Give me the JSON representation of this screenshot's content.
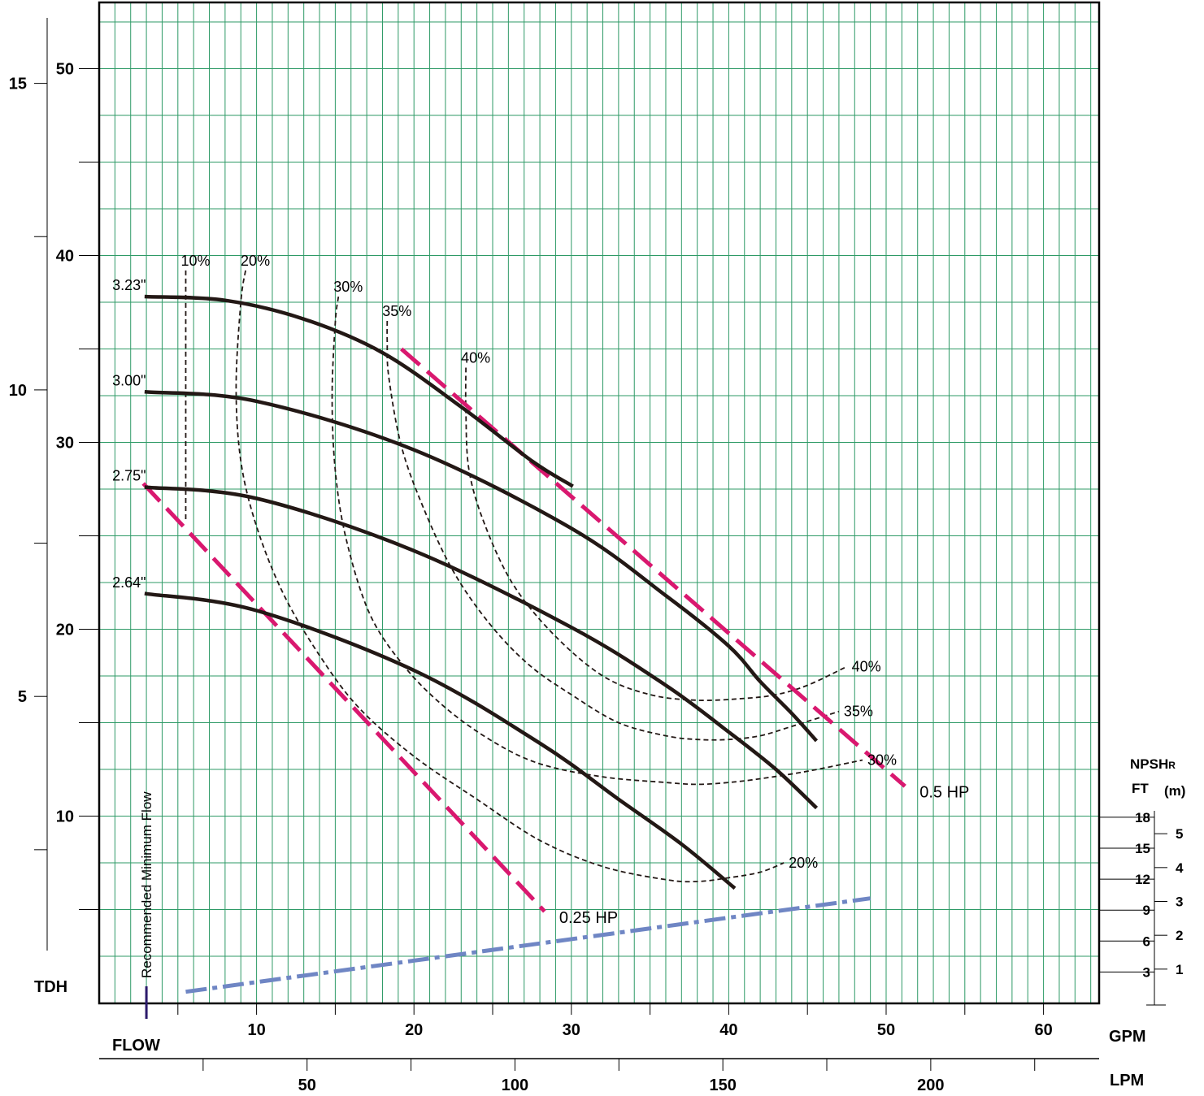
{
  "chart_data": {
    "type": "line",
    "title": "",
    "colors": {
      "grid": "#2e9a66",
      "curve": "#231815",
      "efficiency": "#231815",
      "horsepower": "#d9186f",
      "npshr": "#6f86c4",
      "min_flow": "#2b1a6b"
    },
    "axes": {
      "x_gpm": {
        "label": "GPM",
        "range": [
          0,
          63
        ],
        "ticks": [
          10,
          20,
          30,
          40,
          50,
          60
        ],
        "minor_step": 5
      },
      "x_lpm": {
        "label": "LPM",
        "ticks": [
          50,
          100,
          150,
          200
        ],
        "minor_step": 25
      },
      "y_ft": {
        "range": [
          0,
          55
        ],
        "ticks": [
          10,
          20,
          30,
          40,
          50
        ],
        "minor_step": 5
      },
      "y_m": {
        "ticks": [
          5,
          10,
          15
        ],
        "minor_step": 2.5
      },
      "tdh_label": "TDH",
      "flow_label": "FLOW",
      "npsh": {
        "title": "NPSH",
        "title_sub": "R",
        "ft_label": "FT",
        "m_label": "(m)",
        "ft_ticks": [
          3,
          6,
          9,
          12,
          15,
          18
        ],
        "m_ticks": [
          1,
          2,
          3,
          4,
          5
        ]
      }
    },
    "impeller_curves": [
      {
        "name": "3.23\"",
        "x": [
          3,
          8,
          13,
          18,
          23,
          27.5,
          30
        ],
        "y": [
          37.8,
          37.6,
          36.6,
          34.8,
          31.9,
          29.0,
          27.7
        ]
      },
      {
        "name": "3.00\"",
        "x": [
          3,
          10,
          20,
          30,
          36,
          40,
          42,
          44,
          45.5
        ],
        "y": [
          32.7,
          32.2,
          29.6,
          25.4,
          21.8,
          19.1,
          17.2,
          15.5,
          14.1
        ]
      },
      {
        "name": "2.75\"",
        "x": [
          3,
          10,
          20,
          30,
          36,
          40,
          43,
          45.5
        ],
        "y": [
          27.6,
          27.0,
          24.2,
          20.1,
          17.0,
          14.5,
          12.5,
          10.5
        ]
      },
      {
        "name": "2.64\"",
        "x": [
          3,
          10,
          20,
          28,
          33,
          37,
          40.3
        ],
        "y": [
          21.9,
          21.0,
          17.8,
          13.9,
          10.9,
          8.5,
          6.2
        ]
      }
    ],
    "efficiency_curves": [
      {
        "name": "10%",
        "labels": [
          "10%"
        ],
        "x": [
          5.5,
          5.5,
          5.5
        ],
        "y": [
          39.2,
          33,
          25.8
        ]
      },
      {
        "name": "20%",
        "labels": [
          "20%",
          "20%"
        ],
        "x": [
          9.3,
          9,
          8.7,
          9,
          10,
          11.7,
          14,
          16.5,
          20,
          24,
          28,
          32,
          36,
          38,
          40,
          42,
          43.5
        ],
        "y": [
          39.2,
          37.5,
          33,
          29,
          25.5,
          21.9,
          18.6,
          15.8,
          13.2,
          10.9,
          8.7,
          7.3,
          6.6,
          6.5,
          6.7,
          7.0,
          7.5
        ]
      },
      {
        "name": "30%",
        "labels": [
          "30%",
          "30%"
        ],
        "x": [
          15.2,
          15,
          14.8,
          15,
          15.7,
          17.2,
          19.4,
          22,
          25,
          28,
          32,
          36,
          38,
          40,
          42,
          45,
          48.5
        ],
        "y": [
          37.8,
          36.4,
          32.5,
          28.5,
          24.8,
          20.8,
          18.0,
          15.8,
          14.0,
          12.8,
          12.1,
          11.8,
          11.7,
          11.8,
          12.0,
          12.4,
          13.0
        ]
      },
      {
        "name": "35%",
        "labels": [
          "35%",
          "35%"
        ],
        "x": [
          18.3,
          18.3,
          18.4,
          19.2,
          20.6,
          22.5,
          24.8,
          27.3,
          30,
          33,
          36,
          38,
          40,
          42,
          44,
          47
        ],
        "y": [
          36.5,
          35.4,
          33.5,
          29.8,
          26.5,
          23.1,
          20.3,
          18.1,
          16.5,
          15.0,
          14.3,
          14.1,
          14.1,
          14.3,
          14.8,
          15.6
        ]
      },
      {
        "name": "40%",
        "labels": [
          "40%",
          "40%"
        ],
        "x": [
          23.3,
          23.3,
          23.5,
          24.5,
          26.3,
          28.9,
          32,
          35,
          38,
          41,
          43,
          45,
          47.5
        ],
        "y": [
          34.0,
          31.6,
          28.5,
          25.6,
          22.4,
          19.7,
          17.5,
          16.5,
          16.2,
          16.3,
          16.5,
          17.0,
          18.0
        ]
      }
    ],
    "horsepower_lines": [
      {
        "name": "0.5 HP",
        "x": [
          19.2,
          51.2
        ],
        "y": [
          35.0,
          11.6
        ]
      },
      {
        "name": "0.25 HP",
        "x": [
          2.8,
          28.3
        ],
        "y": [
          27.8,
          4.9
        ]
      }
    ],
    "npshr_line": {
      "name": "NPSHR",
      "x": [
        5.5,
        49
      ],
      "y_ft": [
        0.6,
        5.6
      ]
    },
    "min_flow": {
      "label": "Recommended Minimum Flow",
      "x": 3
    }
  }
}
